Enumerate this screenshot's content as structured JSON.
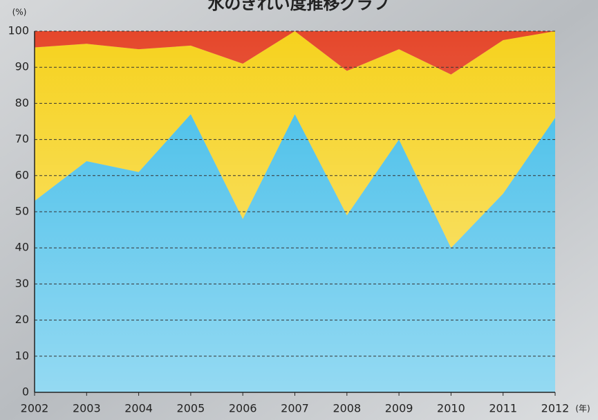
{
  "chart_data": {
    "type": "stacked-area",
    "title": "水のきれい度推移グラフ",
    "y_label": "(%)",
    "x_label": "(年)",
    "x": [
      2002,
      2003,
      2004,
      2005,
      2006,
      2007,
      2008,
      2009,
      2010,
      2011,
      2012
    ],
    "series": [
      {
        "color": "#3dbbe8",
        "values": [
          53,
          64,
          61,
          77,
          48,
          77,
          49,
          70,
          40,
          55,
          76
        ]
      },
      {
        "color": "#f6d21e",
        "values": [
          42.5,
          32.5,
          34,
          19,
          43,
          23,
          40,
          25,
          48,
          42.5,
          24
        ]
      },
      {
        "color": "#e5472b",
        "values": [
          4.5,
          3.5,
          5,
          4,
          9,
          0,
          11,
          5,
          12,
          2.5,
          0
        ]
      }
    ],
    "xlim": [
      2002,
      2012
    ],
    "xticks": [
      2002,
      2003,
      2004,
      2005,
      2006,
      2007,
      2008,
      2009,
      2010,
      2011,
      2012
    ],
    "ylim": [
      0,
      100
    ],
    "yticks": [
      0,
      10,
      20,
      30,
      40,
      50,
      60,
      70,
      80,
      90,
      100
    ],
    "grid": true
  }
}
